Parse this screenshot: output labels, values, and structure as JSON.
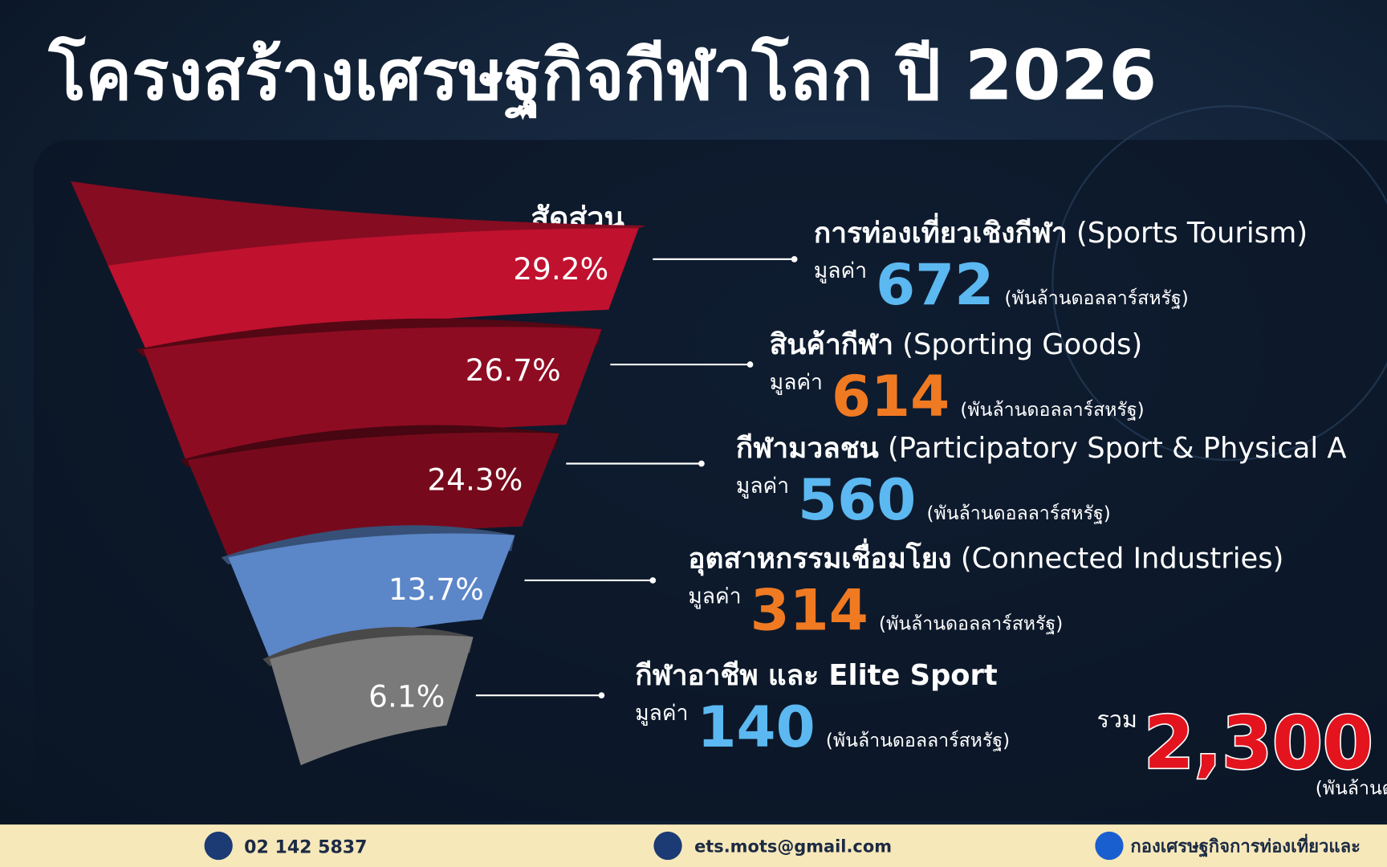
{
  "title": "โครงสร้างเศรษฐกิจกีฬาโลก ปี 2026",
  "chart_data": {
    "type": "funnel",
    "share_label": "สัดส่วน",
    "categories": [
      "การท่องเที่ยวเชิงกีฬา",
      "สินค้ากีฬา",
      "กีฬามวลชน",
      "อุตสาหกรรมเชื่อมโยง",
      "กีฬาอาชีพ และ Elite Sport"
    ],
    "categories_en": [
      "(Sports Tourism)",
      "(Sporting Goods)",
      "(Participatory Sport & Physical A",
      "(Connected Industries)",
      null
    ],
    "values": [
      29.2,
      26.7,
      24.3,
      13.7,
      6.1
    ],
    "value_labels": [
      "29.2%",
      "26.7%",
      "24.3%",
      "13.7%",
      "6.1%"
    ],
    "colors": [
      "#c0112f",
      "#8e0c22",
      "#760a1c",
      "#5b86c8",
      "#7a7a7a"
    ],
    "amount_label": "มูลค่า",
    "amounts": [
      672,
      614,
      560,
      314,
      140
    ],
    "amount_colors": [
      "#5cb8f0",
      "#f07a22",
      "#5cb8f0",
      "#f07a22",
      "#5cb8f0"
    ],
    "amount_unit": "(พันล้านดอลลาร์สหรัฐ)",
    "total_label": "รวม",
    "total": {
      "value": 2300,
      "label": "2,300"
    },
    "total_unit": "(พันล้านด"
  },
  "footer": {
    "phone": "02 142 5837",
    "email": "ets.mots@gmail.com",
    "facebook": "กองเศรษฐกิจการท่องเที่ยวและ"
  }
}
